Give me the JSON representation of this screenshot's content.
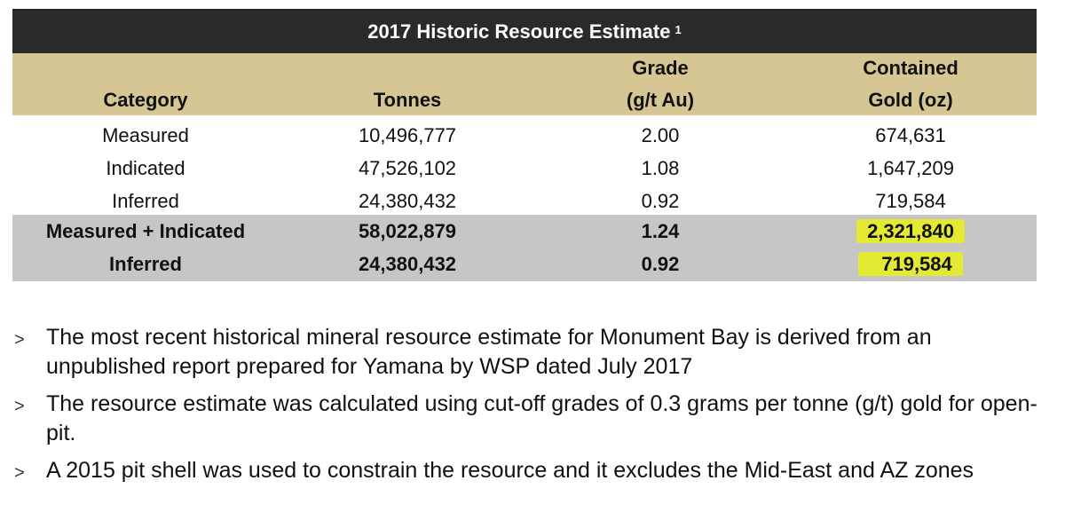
{
  "table": {
    "title": "2017 Historic Resource Estimate",
    "title_footnote": "1",
    "headers": {
      "category": "Category",
      "tonnes": "Tonnes",
      "grade_line1": "Grade",
      "grade_line2": "(g/t Au)",
      "gold_line1": "Contained",
      "gold_line2": "Gold (oz)"
    },
    "rows": [
      {
        "category": "Measured",
        "tonnes": "10,496,777",
        "grade": "2.00",
        "gold": "674,631"
      },
      {
        "category": "Indicated",
        "tonnes": "47,526,102",
        "grade": "1.08",
        "gold": "1,647,209"
      },
      {
        "category": "Inferred",
        "tonnes": "24,380,432",
        "grade": "0.92",
        "gold": "719,584"
      }
    ],
    "summary_rows": [
      {
        "category": "Measured + Indicated",
        "tonnes": "58,022,879",
        "grade": "1.24",
        "gold": "2,321,840"
      },
      {
        "category": "Inferred",
        "tonnes": "24,380,432",
        "grade": "0.92",
        "gold": "719,584"
      }
    ]
  },
  "bullets": [
    "The most recent historical mineral resource estimate for Monument Bay is derived from an unpublished report prepared for Yamana by WSP dated July 2017",
    "The resource estimate was calculated using cut-off grades of 0.3 grams per tonne (g/t) gold for open-pit.",
    "A 2015 pit shell was used to constrain the resource and it excludes the Mid-East and AZ zones"
  ],
  "bullet_marker": ">",
  "colors": {
    "title_bg": "#2a2a2a",
    "header_bg": "#d6c694",
    "summary_bg": "#c6c6c6",
    "highlight": "#e4ea33"
  }
}
